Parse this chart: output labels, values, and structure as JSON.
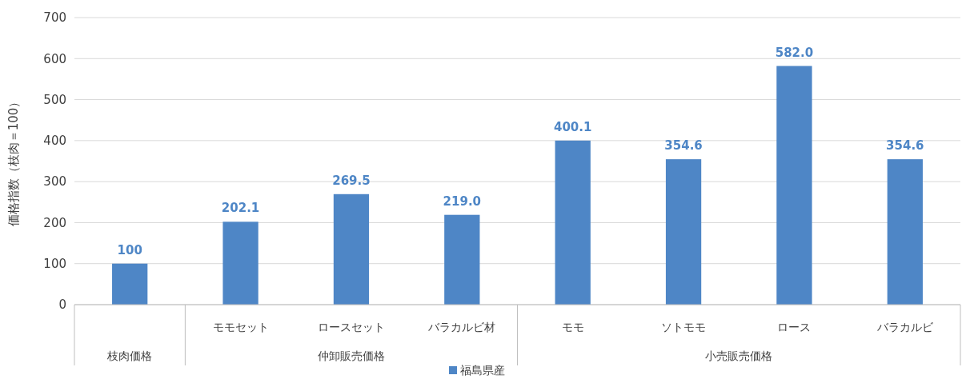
{
  "chart_data": {
    "type": "bar",
    "ylabel": "価格指数（枝肉＝100）",
    "categories": [
      null,
      "モモセット",
      "ロースセット",
      "バラカルビ材",
      "モモ",
      "ソトモモ",
      "ロース",
      "バラカルビ"
    ],
    "series": [
      {
        "name": "福島県産",
        "color": "#4e86c6",
        "values": [
          100,
          202.1,
          269.5,
          219.0,
          400.1,
          354.6,
          582.0,
          354.6
        ],
        "value_labels": [
          "100",
          "202.1",
          "269.5",
          "219.0",
          "400.1",
          "354.6",
          "582.0",
          "354.6"
        ]
      }
    ],
    "annotations": [
      "枝肉価格",
      "仲卸販売価格",
      "小売販売価格"
    ],
    "ylim": [
      0,
      700
    ],
    "yticks": [
      0,
      100,
      200,
      300,
      400,
      500,
      600,
      700
    ],
    "grid": "y",
    "legend": "bottom"
  }
}
